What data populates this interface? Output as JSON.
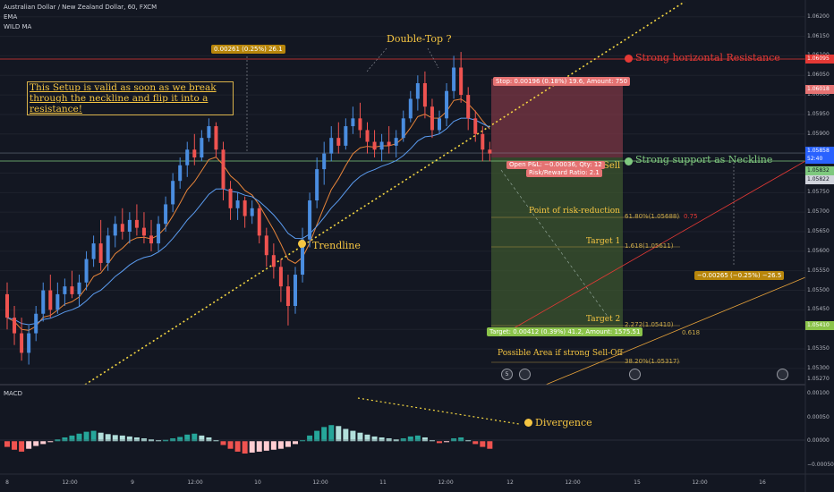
{
  "header": {
    "symbol_line": "Australian Dollar / New Zealand Dollar, 60, FXCM",
    "indicator_1": "EMA",
    "indicator_2": "WILD MA",
    "macd_label": "MACD"
  },
  "annotations": {
    "setup_note": "This Setup is valid as soon as we break through the neckline and flip it into a resistance!",
    "double_top": "Double-Top ?",
    "resistance": "Strong horizontal Resistance",
    "neckline": "Strong support as Neckline",
    "trendline": "Trendline",
    "risk_reduction": "Point of risk-reduction",
    "target_1": "Target 1",
    "target_2": "Target 2",
    "sell_off": "Possible Area if strong Sell-Off",
    "divergence": "Divergence",
    "sell": "Sell"
  },
  "measure_tags": {
    "upper": "0.00261 (0.25%) 26.1",
    "lower": "−0.00265 (−0.25%) −26.5"
  },
  "position": {
    "stop": "Stop: 0.00196 (0.18%) 19.6, Amount: 750",
    "open_pnl": "Open P&L: −0.00036, Qty: 12",
    "risk_reward": "Risk/Reward Ratio: 2.1",
    "target": "Target: 0.00412 (0.39%) 41.2, Amount: 1575.51"
  },
  "fib_levels": {
    "f618": "61.80%(1.05688)",
    "f618_ext": "0.75",
    "f1618": "1.618(1.05611)",
    "f2272": "2.272(1.05410)",
    "f0618": "0.618",
    "f382": "38.20%(1.05317)"
  },
  "event_icons": [
    "5",
    "",
    "",
    ""
  ],
  "price_axis": {
    "ticks": [
      "1.06200",
      "1.06150",
      "1.06100",
      "1.06050",
      "1.06000",
      "1.05950",
      "1.05900",
      "1.05850",
      "1.05800",
      "1.05750",
      "1.05700",
      "1.05650",
      "1.05600",
      "1.05550",
      "1.05500",
      "1.05450",
      "1.05400",
      "1.05350",
      "1.05300"
    ],
    "current": "1.05858",
    "countdown": "52:40",
    "marker_resistance": "1.06095",
    "marker_stop": "1.06018",
    "marker_entry": "1.05832",
    "marker_neck": "1.05822",
    "marker_target": "1.05410",
    "last_tick": "1.05270"
  },
  "macd_axis": {
    "ticks": [
      "0.00100",
      "0.00050",
      "0.00000",
      "−0.00050"
    ]
  },
  "time_axis": {
    "labels": [
      "8",
      "12:00",
      "9",
      "12:00",
      "10",
      "12:00",
      "11",
      "12:00",
      "12",
      "12:00",
      "15",
      "12:00",
      "16"
    ]
  },
  "colors": {
    "background": "#131722",
    "bull": "#4a8de0",
    "bear": "#ef5350",
    "ema": "#e8853a",
    "wild_ma": "#5b9cf0",
    "trendline": "#f5d742",
    "resistance": "#e53935",
    "neckline": "#7fc97f",
    "stop_zone": "#8b3a4a",
    "target_zone": "#3f5a2f"
  },
  "chart_data": {
    "type": "candlestick",
    "title": "Australian Dollar / New Zealand Dollar, 60, FXCM",
    "ylim": [
      1.0527,
      1.0622
    ],
    "key_levels": {
      "resistance": 1.06095,
      "neckline": 1.05822,
      "stop": 1.06018,
      "target_2": 1.0541,
      "fib_61_8": 1.05688,
      "fib_1_618": 1.05611,
      "fib_38_2": 1.05317
    },
    "candles": [
      [
        1.0549,
        1.0552,
        1.054,
        1.0543
      ],
      [
        1.0543,
        1.0546,
        1.0536,
        1.0539
      ],
      [
        1.0539,
        1.0543,
        1.0532,
        1.0534
      ],
      [
        1.0534,
        1.0541,
        1.0531,
        1.0539
      ],
      [
        1.0539,
        1.0546,
        1.0537,
        1.0544
      ],
      [
        1.0544,
        1.0552,
        1.0542,
        1.055
      ],
      [
        1.055,
        1.0554,
        1.0543,
        1.0545
      ],
      [
        1.0545,
        1.0552,
        1.0544,
        1.0549
      ],
      [
        1.0549,
        1.0553,
        1.0546,
        1.0551
      ],
      [
        1.0551,
        1.0555,
        1.0548,
        1.0549
      ],
      [
        1.0549,
        1.0554,
        1.0546,
        1.0552
      ],
      [
        1.0552,
        1.056,
        1.055,
        1.0558
      ],
      [
        1.0558,
        1.0564,
        1.0556,
        1.0562
      ],
      [
        1.0562,
        1.0568,
        1.0555,
        1.0557
      ],
      [
        1.0557,
        1.0566,
        1.0555,
        1.0564
      ],
      [
        1.0564,
        1.0569,
        1.0561,
        1.0567
      ],
      [
        1.0567,
        1.0571,
        1.0563,
        1.0565
      ],
      [
        1.0565,
        1.057,
        1.0562,
        1.0568
      ],
      [
        1.0568,
        1.0572,
        1.0564,
        1.0566
      ],
      [
        1.0566,
        1.057,
        1.0562,
        1.0564
      ],
      [
        1.0564,
        1.0568,
        1.056,
        1.0562
      ],
      [
        1.0562,
        1.0569,
        1.056,
        1.0567
      ],
      [
        1.0567,
        1.0574,
        1.0565,
        1.0572
      ],
      [
        1.0572,
        1.058,
        1.057,
        1.0578
      ],
      [
        1.0578,
        1.0584,
        1.0576,
        1.0582
      ],
      [
        1.0582,
        1.0588,
        1.0579,
        1.0586
      ],
      [
        1.0586,
        1.059,
        1.0582,
        1.0584
      ],
      [
        1.0584,
        1.0591,
        1.0583,
        1.0589
      ],
      [
        1.0589,
        1.0594,
        1.0588,
        1.0592
      ],
      [
        1.0592,
        1.0593,
        1.0584,
        1.0586
      ],
      [
        1.0586,
        1.0588,
        1.0573,
        1.0576
      ],
      [
        1.0576,
        1.0578,
        1.0568,
        1.0571
      ],
      [
        1.0571,
        1.0575,
        1.0568,
        1.0573
      ],
      [
        1.0573,
        1.0574,
        1.0566,
        1.0569
      ],
      [
        1.0569,
        1.0573,
        1.0567,
        1.0571
      ],
      [
        1.0571,
        1.0572,
        1.0562,
        1.0564
      ],
      [
        1.0564,
        1.0566,
        1.0556,
        1.0559
      ],
      [
        1.0559,
        1.0562,
        1.0553,
        1.0556
      ],
      [
        1.0556,
        1.0558,
        1.0547,
        1.0551
      ],
      [
        1.0551,
        1.0554,
        1.0541,
        1.0546
      ],
      [
        1.0546,
        1.0556,
        1.0544,
        1.0554
      ],
      [
        1.0554,
        1.0566,
        1.0552,
        1.0563
      ],
      [
        1.0563,
        1.0575,
        1.0561,
        1.0573
      ],
      [
        1.0573,
        1.0584,
        1.0571,
        1.0581
      ],
      [
        1.0581,
        1.0588,
        1.0577,
        1.0585
      ],
      [
        1.0585,
        1.0592,
        1.0583,
        1.0589
      ],
      [
        1.0589,
        1.0593,
        1.0585,
        1.0587
      ],
      [
        1.0587,
        1.0594,
        1.0586,
        1.0592
      ],
      [
        1.0592,
        1.0597,
        1.059,
        1.0594
      ],
      [
        1.0594,
        1.0598,
        1.0589,
        1.0591
      ],
      [
        1.0591,
        1.0593,
        1.0585,
        1.0588
      ],
      [
        1.0588,
        1.0591,
        1.0584,
        1.0586
      ],
      [
        1.0586,
        1.059,
        1.0583,
        1.0588
      ],
      [
        1.0588,
        1.0592,
        1.0585,
        1.0587
      ],
      [
        1.0587,
        1.0591,
        1.0584,
        1.0589
      ],
      [
        1.0589,
        1.0596,
        1.0588,
        1.0594
      ],
      [
        1.0594,
        1.0601,
        1.0593,
        1.0599
      ],
      [
        1.0599,
        1.0605,
        1.0596,
        1.0603
      ],
      [
        1.0603,
        1.0606,
        1.0594,
        1.0597
      ],
      [
        1.0597,
        1.0599,
        1.0589,
        1.0591
      ],
      [
        1.0591,
        1.0596,
        1.059,
        1.0594
      ],
      [
        1.0594,
        1.0603,
        1.0592,
        1.0601
      ],
      [
        1.0601,
        1.061,
        1.0599,
        1.0607
      ],
      [
        1.0607,
        1.0611,
        1.0598,
        1.06
      ],
      [
        1.06,
        1.0602,
        1.0591,
        1.0594
      ],
      [
        1.0594,
        1.0596,
        1.0588,
        1.059
      ],
      [
        1.059,
        1.0592,
        1.0583,
        1.0586
      ],
      [
        1.0586,
        1.0588,
        1.0583,
        1.0585
      ]
    ],
    "macd_histogram": [
      -0.00012,
      -0.00018,
      -0.00022,
      -0.00016,
      -0.0001,
      -6e-05,
      -2e-05,
      4e-05,
      8e-05,
      0.00012,
      0.00016,
      0.0002,
      0.00022,
      0.00018,
      0.00015,
      0.00013,
      0.00012,
      0.0001,
      8e-05,
      6e-05,
      4e-05,
      2e-05,
      3e-05,
      6e-05,
      9e-05,
      0.00014,
      0.00016,
      0.00012,
      8e-05,
      2e-05,
      -8e-05,
      -0.00016,
      -0.00022,
      -0.00026,
      -0.00024,
      -0.00022,
      -0.0002,
      -0.00018,
      -0.00016,
      -0.00012,
      -6e-05,
      2e-05,
      0.00012,
      0.00022,
      0.0003,
      0.00034,
      0.00032,
      0.00026,
      0.00022,
      0.00018,
      0.00014,
      0.0001,
      8e-05,
      6e-05,
      4e-05,
      6e-05,
      0.0001,
      0.00012,
      8e-05,
      2e-05,
      -4e-05,
      -2e-05,
      6e-05,
      8e-05,
      2e-05,
      -6e-05,
      -0.00012,
      -0.00016
    ]
  }
}
